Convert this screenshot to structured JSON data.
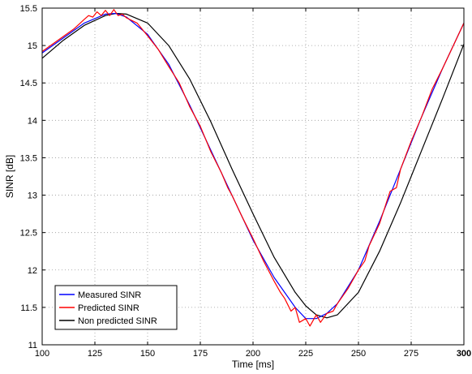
{
  "chart_data": {
    "type": "line",
    "title": "",
    "xlabel": "Time [ms]",
    "ylabel": "SINR [dB]",
    "xlim": [
      100,
      300
    ],
    "ylim": [
      11,
      15.5
    ],
    "xticks": [
      100,
      125,
      150,
      175,
      200,
      225,
      250,
      275,
      300
    ],
    "yticks": [
      11,
      11.5,
      12,
      12.5,
      13,
      13.5,
      14,
      14.5,
      15,
      15.5
    ],
    "xtick_labels": [
      "100",
      "125",
      "150",
      "175",
      "200",
      "225",
      "250",
      "275",
      "300"
    ],
    "ytick_labels": [
      "11",
      "11.5",
      "12",
      "12.5",
      "13",
      "13.5",
      "14",
      "14.5",
      "15",
      "15.5"
    ],
    "grid": true,
    "legend_position": "bottom-left",
    "series": [
      {
        "name": "Measured SINR",
        "color": "#0000ff",
        "x": [
          100,
          110,
          120,
          130,
          135,
          140,
          150,
          160,
          170,
          180,
          190,
          200,
          210,
          220,
          225,
          230,
          235,
          240,
          250,
          260,
          270,
          280,
          290,
          300
        ],
        "y": [
          14.9,
          15.1,
          15.3,
          15.42,
          15.43,
          15.38,
          15.15,
          14.75,
          14.2,
          13.6,
          13.0,
          12.4,
          11.9,
          11.5,
          11.35,
          11.35,
          11.42,
          11.55,
          12.0,
          12.65,
          13.35,
          14.05,
          14.7,
          15.3
        ]
      },
      {
        "name": "Predicted SINR",
        "color": "#ff0000",
        "x": [
          100,
          105,
          110,
          115,
          120,
          122,
          124,
          126,
          128,
          130,
          132,
          134,
          136,
          138,
          140,
          145,
          150,
          155,
          160,
          165,
          170,
          175,
          180,
          185,
          188,
          190,
          195,
          200,
          205,
          210,
          213,
          215,
          218,
          220,
          222,
          225,
          227,
          230,
          232,
          235,
          238,
          240,
          245,
          250,
          253,
          255,
          260,
          265,
          268,
          270,
          275,
          280,
          285,
          290,
          295,
          300
        ],
        "y": [
          14.92,
          15.02,
          15.12,
          15.22,
          15.35,
          15.4,
          15.38,
          15.45,
          15.4,
          15.47,
          15.4,
          15.48,
          15.4,
          15.42,
          15.37,
          15.3,
          15.13,
          14.95,
          14.72,
          14.5,
          14.18,
          13.92,
          13.58,
          13.3,
          13.1,
          13.0,
          12.7,
          12.42,
          12.12,
          11.85,
          11.7,
          11.62,
          11.45,
          11.5,
          11.3,
          11.35,
          11.25,
          11.4,
          11.3,
          11.42,
          11.45,
          11.55,
          11.75,
          12.0,
          12.12,
          12.32,
          12.62,
          13.05,
          13.1,
          13.35,
          13.72,
          14.05,
          14.42,
          14.7,
          15.0,
          15.3
        ]
      },
      {
        "name": "Non predicted SINR",
        "color": "#000000",
        "x": [
          100,
          110,
          120,
          130,
          135,
          140,
          150,
          160,
          170,
          180,
          190,
          200,
          210,
          220,
          225,
          230,
          235,
          240,
          250,
          260,
          270,
          280,
          290,
          300
        ],
        "y": [
          14.83,
          15.07,
          15.27,
          15.4,
          15.43,
          15.42,
          15.3,
          15.0,
          14.55,
          13.98,
          13.35,
          12.75,
          12.17,
          11.7,
          11.52,
          11.4,
          11.36,
          11.4,
          11.7,
          12.25,
          12.9,
          13.6,
          14.3,
          15.02
        ]
      }
    ]
  }
}
